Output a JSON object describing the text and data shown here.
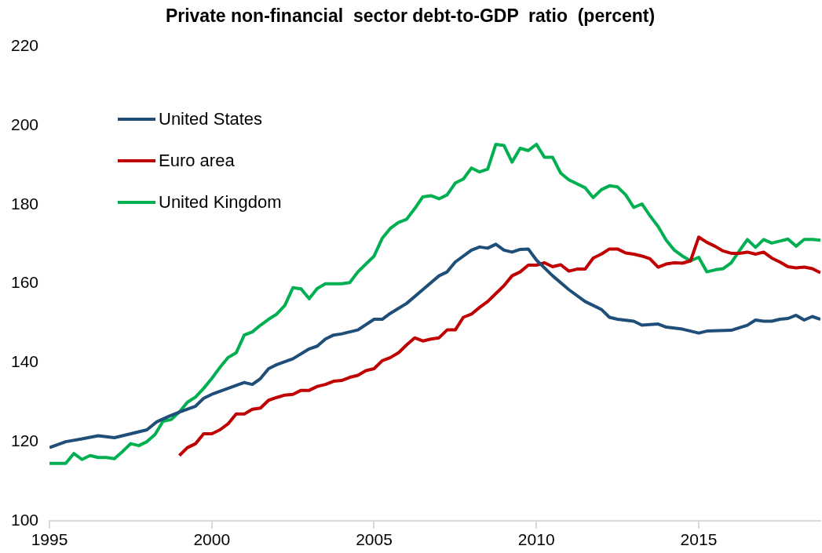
{
  "chart_data": {
    "type": "line",
    "title": "Private non-financial  sector debt-to-GDP  ratio  (percent)",
    "xlim": [
      1995,
      2018.75
    ],
    "xticks": [
      1995,
      2000,
      2005,
      2010,
      2015
    ],
    "ylim": [
      100,
      220
    ],
    "yticks": [
      100,
      120,
      140,
      160,
      180,
      200,
      220
    ],
    "grid": false,
    "legend": "top left",
    "marker": "none",
    "line_style": "solid",
    "series": [
      {
        "name": "United States",
        "color": "#1f4e79",
        "x": [
          1995,
          1995.5,
          1996,
          1996.5,
          1997,
          1997.5,
          1998,
          1998.3,
          1998.7,
          1999,
          1999.5,
          1999.75,
          2000,
          2000.5,
          2001,
          2001.25,
          2001.5,
          2001.75,
          2002,
          2002.5,
          2003,
          2003.25,
          2003.5,
          2003.75,
          2004,
          2004.5,
          2005,
          2005.25,
          2005.5,
          2006,
          2006.5,
          2007,
          2007.25,
          2007.5,
          2008,
          2008.25,
          2008.5,
          2008.75,
          2009,
          2009.25,
          2009.5,
          2009.75,
          2010,
          2010.5,
          2011,
          2011.5,
          2012,
          2012.25,
          2012.5,
          2013,
          2013.25,
          2013.75,
          2014,
          2014.5,
          2015,
          2015.25,
          2016,
          2016.5,
          2016.75,
          2017,
          2017.25,
          2017.5,
          2017.75,
          2018,
          2018.25,
          2018.5,
          2018.75
        ],
        "values": [
          118.5,
          120,
          120.7,
          121.5,
          121,
          122,
          123,
          125,
          126.5,
          127.5,
          129,
          131,
          132,
          133.5,
          135,
          134.5,
          136,
          138.5,
          139.5,
          141,
          143.5,
          144.2,
          146,
          147,
          147.3,
          148.3,
          151,
          151,
          152.5,
          155,
          158.5,
          162,
          163,
          165.5,
          168.5,
          169.3,
          169,
          170,
          168.5,
          168,
          168.7,
          168.8,
          166,
          162,
          158.5,
          155.5,
          153.5,
          151.5,
          151,
          150.5,
          149.5,
          149.8,
          149,
          148.5,
          147.5,
          148,
          148.2,
          149.5,
          150.8,
          150.5,
          150.5,
          151,
          151.2,
          152,
          150.8,
          151.7,
          151
        ]
      },
      {
        "name": "Euro area",
        "color": "#c00000",
        "x": [
          1999,
          1999.25,
          1999.5,
          1999.75,
          2000,
          2000.25,
          2000.5,
          2000.75,
          2001,
          2001.25,
          2001.5,
          2001.75,
          2002,
          2002.25,
          2002.5,
          2002.75,
          2003,
          2003.25,
          2003.5,
          2003.75,
          2004,
          2004.25,
          2004.5,
          2004.75,
          2005,
          2005.25,
          2005.5,
          2005.75,
          2006,
          2006.25,
          2006.5,
          2006.75,
          2007,
          2007.25,
          2007.5,
          2007.75,
          2008,
          2008.25,
          2008.5,
          2008.75,
          2009,
          2009.25,
          2009.5,
          2009.75,
          2010,
          2010.25,
          2010.5,
          2010.75,
          2011,
          2011.25,
          2011.5,
          2011.75,
          2012,
          2012.25,
          2012.5,
          2012.75,
          2013,
          2013.25,
          2013.5,
          2013.75,
          2014,
          2014.25,
          2014.5,
          2014.75,
          2015,
          2015.25,
          2015.5,
          2015.75,
          2016,
          2016.25,
          2016.5,
          2016.75,
          2017,
          2017.25,
          2017.5,
          2017.75,
          2018,
          2018.25,
          2018.5,
          2018.75
        ],
        "values": [
          116.5,
          118.5,
          119.5,
          122,
          122,
          123,
          124.5,
          127,
          127,
          128.2,
          128.5,
          130.5,
          131.2,
          131.8,
          132,
          133,
          133,
          134,
          134.5,
          135.3,
          135.5,
          136.3,
          136.8,
          138,
          138.5,
          140.5,
          141.3,
          142.5,
          144.5,
          146.3,
          145.5,
          146,
          146.3,
          148.3,
          148.3,
          151.5,
          152.3,
          154,
          155.5,
          157.5,
          159.5,
          162,
          163,
          164.7,
          164.7,
          165.3,
          164.3,
          164.8,
          163.2,
          163.7,
          163.7,
          166.5,
          167.5,
          168.8,
          168.8,
          167.8,
          167.5,
          167,
          166.3,
          164.2,
          165,
          165.3,
          165.2,
          165.8,
          171.8,
          170.5,
          169.5,
          168.3,
          167.7,
          167.7,
          168,
          167.5,
          168,
          166.5,
          165.5,
          164.3,
          164,
          164.2,
          163.8,
          162.8
        ]
      },
      {
        "name": "United Kingdom",
        "color": "#00b050",
        "x": [
          1995,
          1995.25,
          1995.5,
          1995.75,
          1996,
          1996.25,
          1996.5,
          1996.75,
          1997,
          1997.25,
          1997.5,
          1997.75,
          1998,
          1998.25,
          1998.5,
          1998.75,
          1999,
          1999.25,
          1999.5,
          1999.75,
          2000,
          2000.25,
          2000.5,
          2000.75,
          2001,
          2001.25,
          2001.5,
          2001.75,
          2002,
          2002.25,
          2002.5,
          2002.75,
          2003,
          2003.25,
          2003.5,
          2003.75,
          2004,
          2004.25,
          2004.5,
          2004.75,
          2005,
          2005.25,
          2005.5,
          2005.75,
          2006,
          2006.25,
          2006.5,
          2006.75,
          2007,
          2007.25,
          2007.5,
          2007.75,
          2008,
          2008.25,
          2008.5,
          2008.75,
          2009,
          2009.25,
          2009.5,
          2009.75,
          2010,
          2010.25,
          2010.5,
          2010.75,
          2011,
          2011.25,
          2011.5,
          2011.75,
          2012,
          2012.25,
          2012.5,
          2012.75,
          2013,
          2013.25,
          2013.5,
          2013.75,
          2014,
          2014.25,
          2014.5,
          2014.75,
          2015,
          2015.25,
          2015.5,
          2015.75,
          2016,
          2016.25,
          2016.5,
          2016.75,
          2017,
          2017.25,
          2017.5,
          2017.75,
          2018,
          2018.25,
          2018.5,
          2018.75
        ],
        "values": [
          114.5,
          114.5,
          114.5,
          117,
          115.5,
          116.5,
          116,
          116,
          115.7,
          117.5,
          119.5,
          119,
          120,
          121.8,
          125.2,
          125.6,
          127.5,
          130,
          131.3,
          133.5,
          136,
          138.8,
          141.3,
          142.5,
          147,
          147.8,
          149.5,
          151,
          152.3,
          154.5,
          159,
          158.7,
          156.2,
          158.8,
          160,
          160,
          160,
          160.3,
          163,
          165,
          167,
          171.5,
          174,
          175.5,
          176.3,
          179,
          182,
          182.3,
          181.5,
          182.5,
          185.5,
          186.5,
          189.3,
          188.3,
          189,
          195.3,
          195,
          190.8,
          194.3,
          193.7,
          195.3,
          192,
          192,
          188,
          186.3,
          185.3,
          184.3,
          181.8,
          183.8,
          184.8,
          184.5,
          182.5,
          179.3,
          180.2,
          177.2,
          174.5,
          171,
          168.5,
          167,
          165.8,
          166.7,
          163,
          163.5,
          163.8,
          165.3,
          168.3,
          171.2,
          169.2,
          171.2,
          170.3,
          170.8,
          171.3,
          169.5,
          171.2,
          171.2,
          171
        ]
      }
    ]
  }
}
